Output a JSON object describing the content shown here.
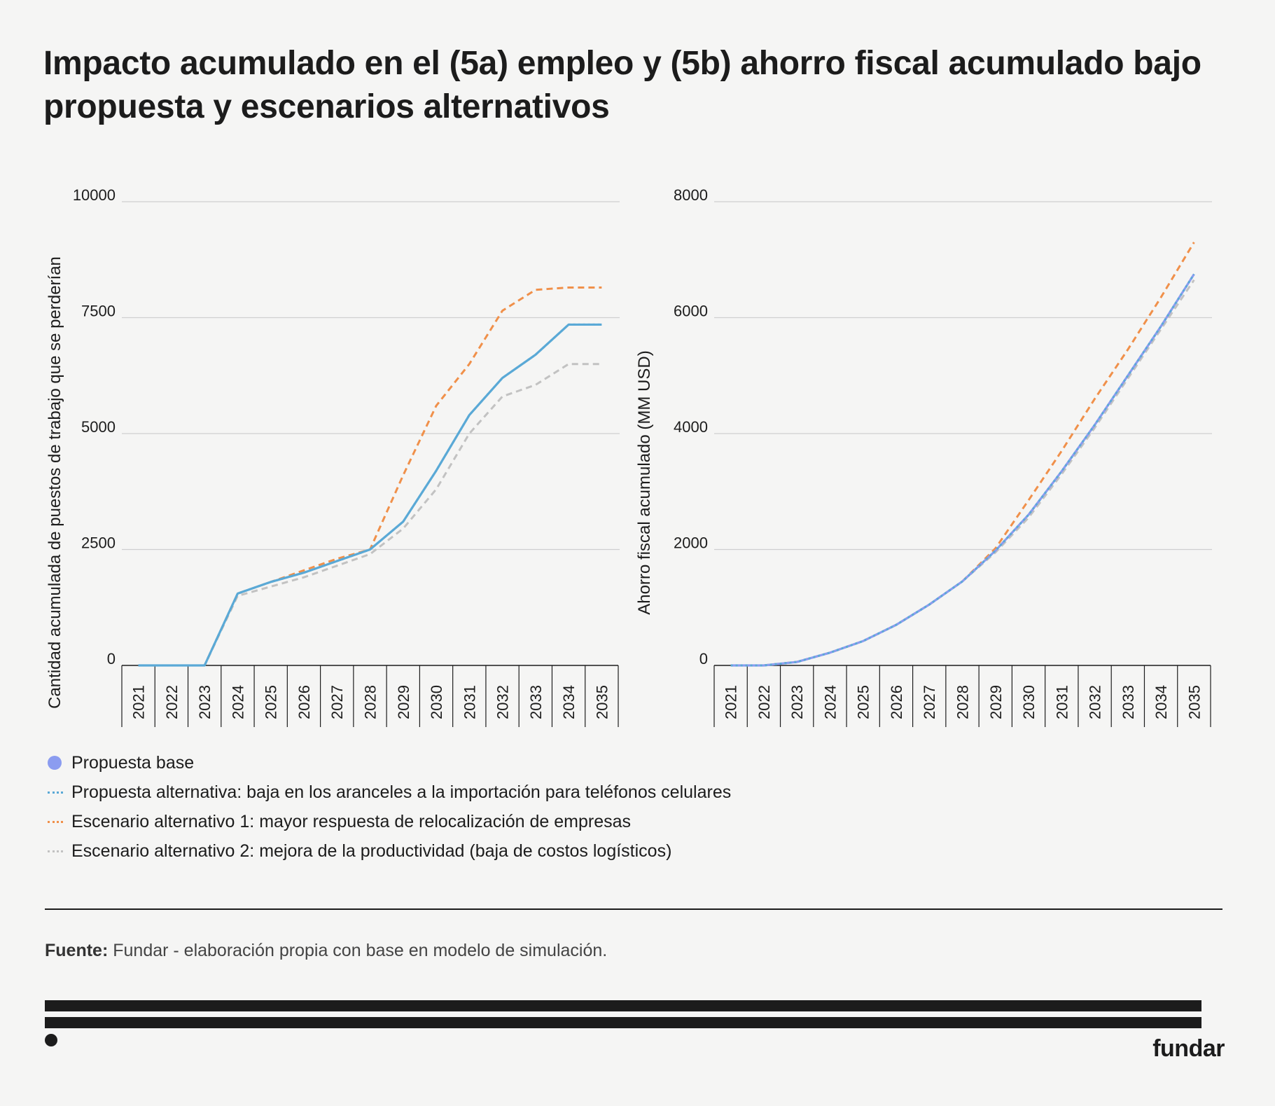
{
  "title": "Impacto acumulado en el (5a) empleo y (5b) ahorro fiscal acumulado bajo propuesta y escenarios alternativos",
  "colors": {
    "base": "#8b9cf0",
    "alt_proposal": "#5aa9d6",
    "scenario1": "#f0904a",
    "scenario2": "#c2c2c2"
  },
  "chart_data": [
    {
      "type": "line",
      "id": "5a",
      "ylabel": "Cantidad acumulada de puestos de trabajo que se perderían",
      "xlabel": "",
      "ylim": [
        0,
        10000
      ],
      "yticks": [
        "0",
        "2500",
        "5000",
        "7500",
        "10000"
      ],
      "categories": [
        "2021",
        "2022",
        "2023",
        "2024",
        "2025",
        "2026",
        "2027",
        "2028",
        "2029",
        "2030",
        "2031",
        "2032",
        "2033",
        "2034",
        "2035"
      ],
      "series": [
        {
          "name": "Propuesta base",
          "key": "base",
          "style": "solid",
          "values": [
            0,
            0,
            0,
            1550,
            1800,
            2000,
            2250,
            2500,
            3100,
            4200,
            5400,
            6200,
            6700,
            7350,
            7350
          ]
        },
        {
          "name": "Propuesta alternativa: baja en los aranceles a la importación para teléfonos celulares",
          "key": "alt_proposal",
          "style": "dotted",
          "values": [
            0,
            0,
            0,
            1550,
            1800,
            2000,
            2250,
            2500,
            3100,
            4200,
            5400,
            6200,
            6700,
            7350,
            7350
          ]
        },
        {
          "name": "Escenario alternativo 1: mayor respuesta de relocalización de empresas",
          "key": "scenario1",
          "style": "dashed",
          "values": [
            0,
            0,
            0,
            1550,
            1800,
            2050,
            2300,
            2500,
            4100,
            5600,
            6500,
            7650,
            8100,
            8150,
            8150
          ]
        },
        {
          "name": "Escenario alternativo 2: mejora de la productividad (baja de costos logísticos)",
          "key": "scenario2",
          "style": "dashed",
          "values": [
            0,
            0,
            0,
            1500,
            1700,
            1900,
            2150,
            2400,
            2950,
            3800,
            5000,
            5800,
            6050,
            6500,
            6500
          ]
        }
      ]
    },
    {
      "type": "line",
      "id": "5b",
      "ylabel": "Ahorro fiscal acumulado (MM USD)",
      "xlabel": "",
      "ylim": [
        0,
        8000
      ],
      "yticks": [
        "0",
        "2000",
        "4000",
        "6000",
        "8000"
      ],
      "categories": [
        "2021",
        "2022",
        "2023",
        "2024",
        "2025",
        "2026",
        "2027",
        "2028",
        "2029",
        "2030",
        "2031",
        "2032",
        "2033",
        "2034",
        "2035"
      ],
      "series": [
        {
          "name": "Propuesta base",
          "key": "base",
          "style": "solid",
          "values": [
            0,
            0,
            60,
            220,
            420,
            700,
            1050,
            1450,
            1980,
            2600,
            3350,
            4150,
            5000,
            5850,
            6750
          ]
        },
        {
          "name": "Propuesta alternativa: baja en los aranceles a la importación para teléfonos celulares",
          "key": "alt_proposal",
          "style": "dotted",
          "values": [
            0,
            0,
            60,
            220,
            420,
            700,
            1050,
            1450,
            1980,
            2600,
            3350,
            4150,
            5000,
            5850,
            6750
          ]
        },
        {
          "name": "Escenario alternativo 1: mayor respuesta de relocalización de empresas",
          "key": "scenario1",
          "style": "dashed",
          "values": [
            0,
            0,
            60,
            220,
            420,
            700,
            1050,
            1450,
            2020,
            2850,
            3700,
            4600,
            5450,
            6350,
            7300
          ]
        },
        {
          "name": "Escenario alternativo 2: mejora de la productividad (baja de costos logísticos)",
          "key": "scenario2",
          "style": "dashed",
          "values": [
            0,
            0,
            60,
            220,
            420,
            700,
            1050,
            1450,
            1950,
            2550,
            3300,
            4100,
            4950,
            5800,
            6650
          ]
        }
      ]
    }
  ],
  "legend": [
    {
      "label": "Propuesta base",
      "key": "base",
      "marker": "dot"
    },
    {
      "label": "Propuesta alternativa: baja en los aranceles a la importación para teléfonos celulares",
      "key": "alt_proposal",
      "marker": "dotted"
    },
    {
      "label": "Escenario alternativo 1: mayor respuesta de relocalización de empresas",
      "key": "scenario1",
      "marker": "dotted"
    },
    {
      "label": "Escenario alternativo 2: mejora de la productividad (baja de costos logísticos)",
      "key": "scenario2",
      "marker": "dotted"
    }
  ],
  "source": {
    "label": "Fuente:",
    "text": "Fundar - elaboración propia con base en modelo de simulación."
  },
  "brand": "fundar"
}
